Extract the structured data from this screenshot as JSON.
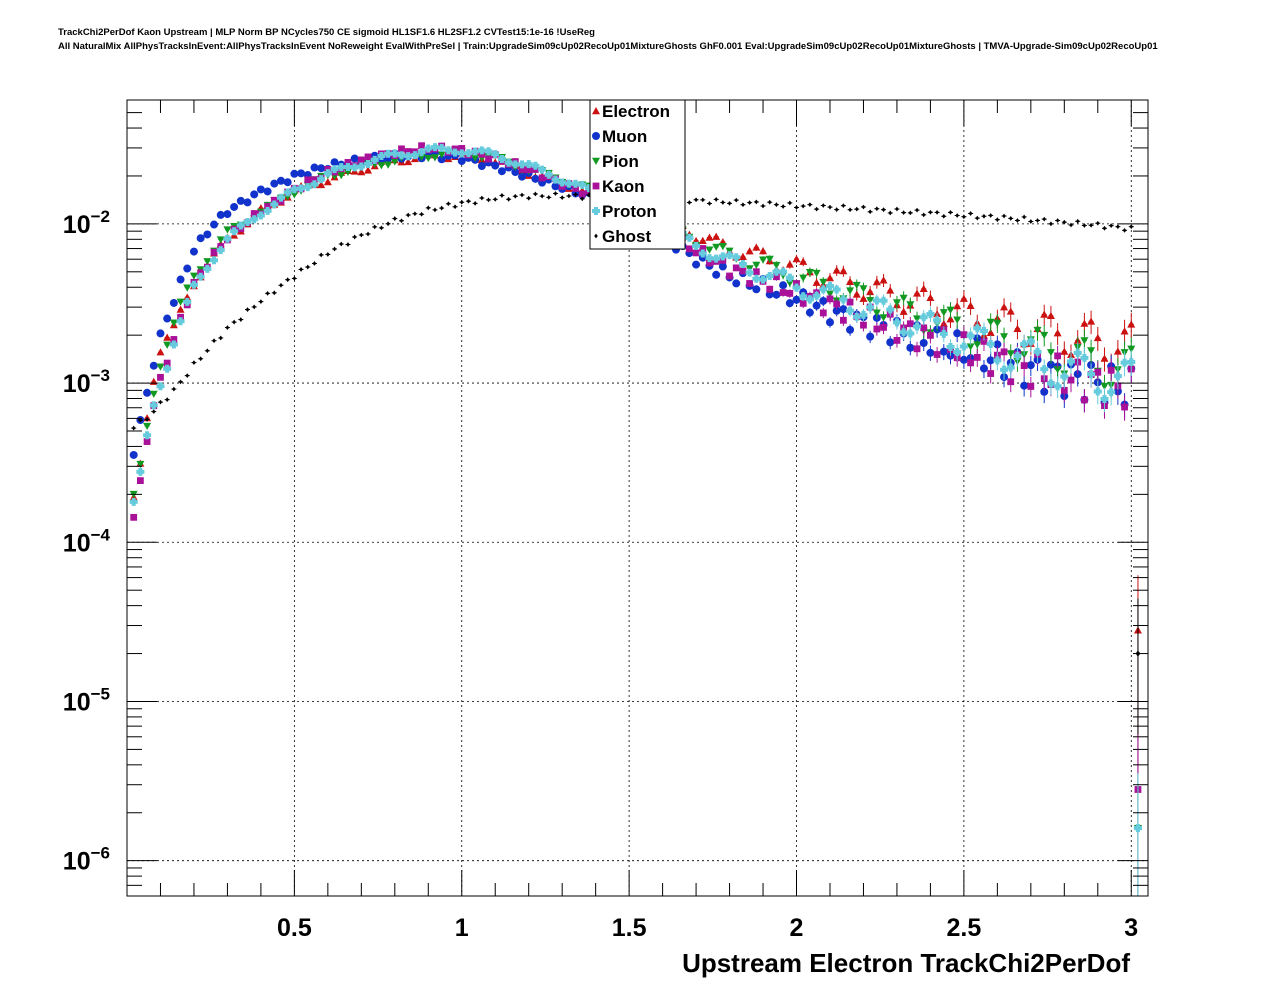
{
  "header": {
    "line1": "TrackChi2PerDof Kaon Upstream | MLP Norm BP NCycles750 CE sigmoid HL1SF1.6 HL2SF1.2 CVTest15:1e-16 !UseReg",
    "line2": "All NaturalMix AllPhysTracksInEvent:AllPhysTracksInEvent NoReweight EvalWithPreSel | Train:UpgradeSim09cUp02RecoUp01MixtureGhosts GhF0.001 Eval:UpgradeSim09cUp02RecoUp01MixtureGhosts | TMVA-Upgrade-Sim09cUp02RecoUp01"
  },
  "chart_data": {
    "type": "scatter",
    "xlabel": "Upstream Electron TrackChi2PerDof",
    "ylabel": "",
    "xlim": [
      0,
      3.05
    ],
    "ylim": [
      6e-07,
      0.06
    ],
    "yscale": "log",
    "grid": true,
    "legend_position": "top-center",
    "x_ticks": [
      {
        "value": 0.5,
        "label": "0.5"
      },
      {
        "value": 1,
        "label": "1"
      },
      {
        "value": 1.5,
        "label": "1.5"
      },
      {
        "value": 2,
        "label": "2"
      },
      {
        "value": 2.5,
        "label": "2.5"
      },
      {
        "value": 3,
        "label": "3"
      }
    ],
    "y_ticks": [
      {
        "value": 1e-06,
        "base": "10",
        "exp": "−6"
      },
      {
        "value": 1e-05,
        "base": "10",
        "exp": "−5"
      },
      {
        "value": 0.0001,
        "base": "10",
        "exp": "−4"
      },
      {
        "value": 0.001,
        "base": "10",
        "exp": "−3"
      },
      {
        "value": 0.01,
        "base": "10",
        "exp": "−2"
      }
    ],
    "anchors": {
      "x": [
        0.01,
        0.03,
        0.05,
        0.07,
        0.09,
        0.11,
        0.13,
        0.15,
        0.2,
        0.25,
        0.3,
        0.4,
        0.5,
        0.6,
        0.7,
        0.8,
        0.9,
        1.0,
        1.1,
        1.2,
        1.3,
        1.4,
        1.5,
        1.6,
        1.7,
        1.8,
        1.9,
        2.0,
        2.1,
        2.2,
        2.3,
        2.4,
        2.5,
        2.6,
        2.7,
        2.8,
        2.9,
        3.0
      ],
      "series": [
        {
          "name": "Electron",
          "color": "#cc1111",
          "marker": "triangle-up",
          "y": [
            0.00017,
            0.0002,
            0.00045,
            0.0008,
            0.0014,
            0.0019,
            0.002,
            0.0025,
            0.0042,
            0.006,
            0.008,
            0.012,
            0.016,
            0.019,
            0.022,
            0.025,
            0.0265,
            0.027,
            0.025,
            0.021,
            0.018,
            0.015,
            0.013,
            0.011,
            0.0085,
            0.007,
            0.0062,
            0.0053,
            0.0046,
            0.004,
            0.0035,
            0.0031,
            0.0027,
            0.0024,
            0.0022,
            0.002,
            0.0018,
            0.0017
          ]
        },
        {
          "name": "Muon",
          "color": "#1133cc",
          "marker": "circle",
          "y": [
            0.0003,
            0.00045,
            0.0007,
            0.0011,
            0.0016,
            0.0024,
            0.0028,
            0.0038,
            0.0068,
            0.0095,
            0.012,
            0.016,
            0.02,
            0.023,
            0.025,
            0.0265,
            0.027,
            0.026,
            0.023,
            0.02,
            0.017,
            0.0145,
            0.012,
            0.0085,
            0.006,
            0.0047,
            0.004,
            0.0034,
            0.0028,
            0.0024,
            0.0021,
            0.0018,
            0.0016,
            0.0014,
            0.0012,
            0.0011,
            0.001,
            0.0009
          ]
        },
        {
          "name": "Pion",
          "color": "#119922",
          "marker": "triangle-down",
          "y": [
            0.00017,
            0.00022,
            0.0004,
            0.0007,
            0.0011,
            0.0016,
            0.002,
            0.0028,
            0.0047,
            0.0065,
            0.0088,
            0.012,
            0.016,
            0.02,
            0.023,
            0.025,
            0.027,
            0.028,
            0.026,
            0.022,
            0.019,
            0.016,
            0.013,
            0.01,
            0.0078,
            0.0063,
            0.0055,
            0.0047,
            0.004,
            0.0034,
            0.0029,
            0.0025,
            0.0022,
            0.0019,
            0.0017,
            0.0015,
            0.0013,
            0.0012
          ]
        },
        {
          "name": "Kaon",
          "color": "#aa1199",
          "marker": "square",
          "y": [
            0.00013,
            0.00017,
            0.00032,
            0.0006,
            0.0009,
            0.0012,
            0.0016,
            0.0022,
            0.0042,
            0.006,
            0.0082,
            0.012,
            0.0165,
            0.021,
            0.025,
            0.028,
            0.03,
            0.029,
            0.026,
            0.022,
            0.018,
            0.0148,
            0.012,
            0.0092,
            0.0068,
            0.0052,
            0.0044,
            0.0037,
            0.0031,
            0.0026,
            0.0022,
            0.0019,
            0.0016,
            0.0014,
            0.0012,
            0.0011,
            0.001,
            0.0009
          ]
        },
        {
          "name": "Proton",
          "color": "#66ccdd",
          "marker": "cross",
          "y": [
            0.00015,
            0.0002,
            0.00035,
            0.0006,
            0.0009,
            0.0011,
            0.0015,
            0.0021,
            0.004,
            0.0058,
            0.008,
            0.0118,
            0.016,
            0.0205,
            0.024,
            0.027,
            0.029,
            0.029,
            0.027,
            0.023,
            0.019,
            0.0155,
            0.0125,
            0.0096,
            0.0073,
            0.0058,
            0.0049,
            0.0041,
            0.0035,
            0.003,
            0.0026,
            0.0022,
            0.0019,
            0.0016,
            0.0014,
            0.0012,
            0.0011,
            0.001
          ]
        },
        {
          "name": "Ghost",
          "color": "#000000",
          "marker": "diamond",
          "y": [
            0.00052,
            0.00055,
            0.00058,
            0.00063,
            0.0007,
            0.00078,
            0.00085,
            0.00095,
            0.0013,
            0.0017,
            0.0022,
            0.0033,
            0.0047,
            0.0066,
            0.0085,
            0.0105,
            0.0122,
            0.0135,
            0.0145,
            0.015,
            0.015,
            0.0148,
            0.0145,
            0.0143,
            0.014,
            0.0137,
            0.0134,
            0.013,
            0.0127,
            0.0124,
            0.012,
            0.0117,
            0.0113,
            0.011,
            0.0106,
            0.0102,
            0.0098,
            0.0093
          ]
        }
      ]
    },
    "overflow_points": [
      {
        "series": "Electron",
        "x": 3.02,
        "y": 2.8e-05
      },
      {
        "series": "Ghost",
        "x": 3.02,
        "y": 2e-05
      },
      {
        "series": "Kaon",
        "x": 3.02,
        "y": 2.8e-06
      },
      {
        "series": "Pion",
        "x": 3.02,
        "y": 1.6e-06
      },
      {
        "series": "Proton",
        "x": 3.02,
        "y": 1.6e-06
      }
    ]
  }
}
